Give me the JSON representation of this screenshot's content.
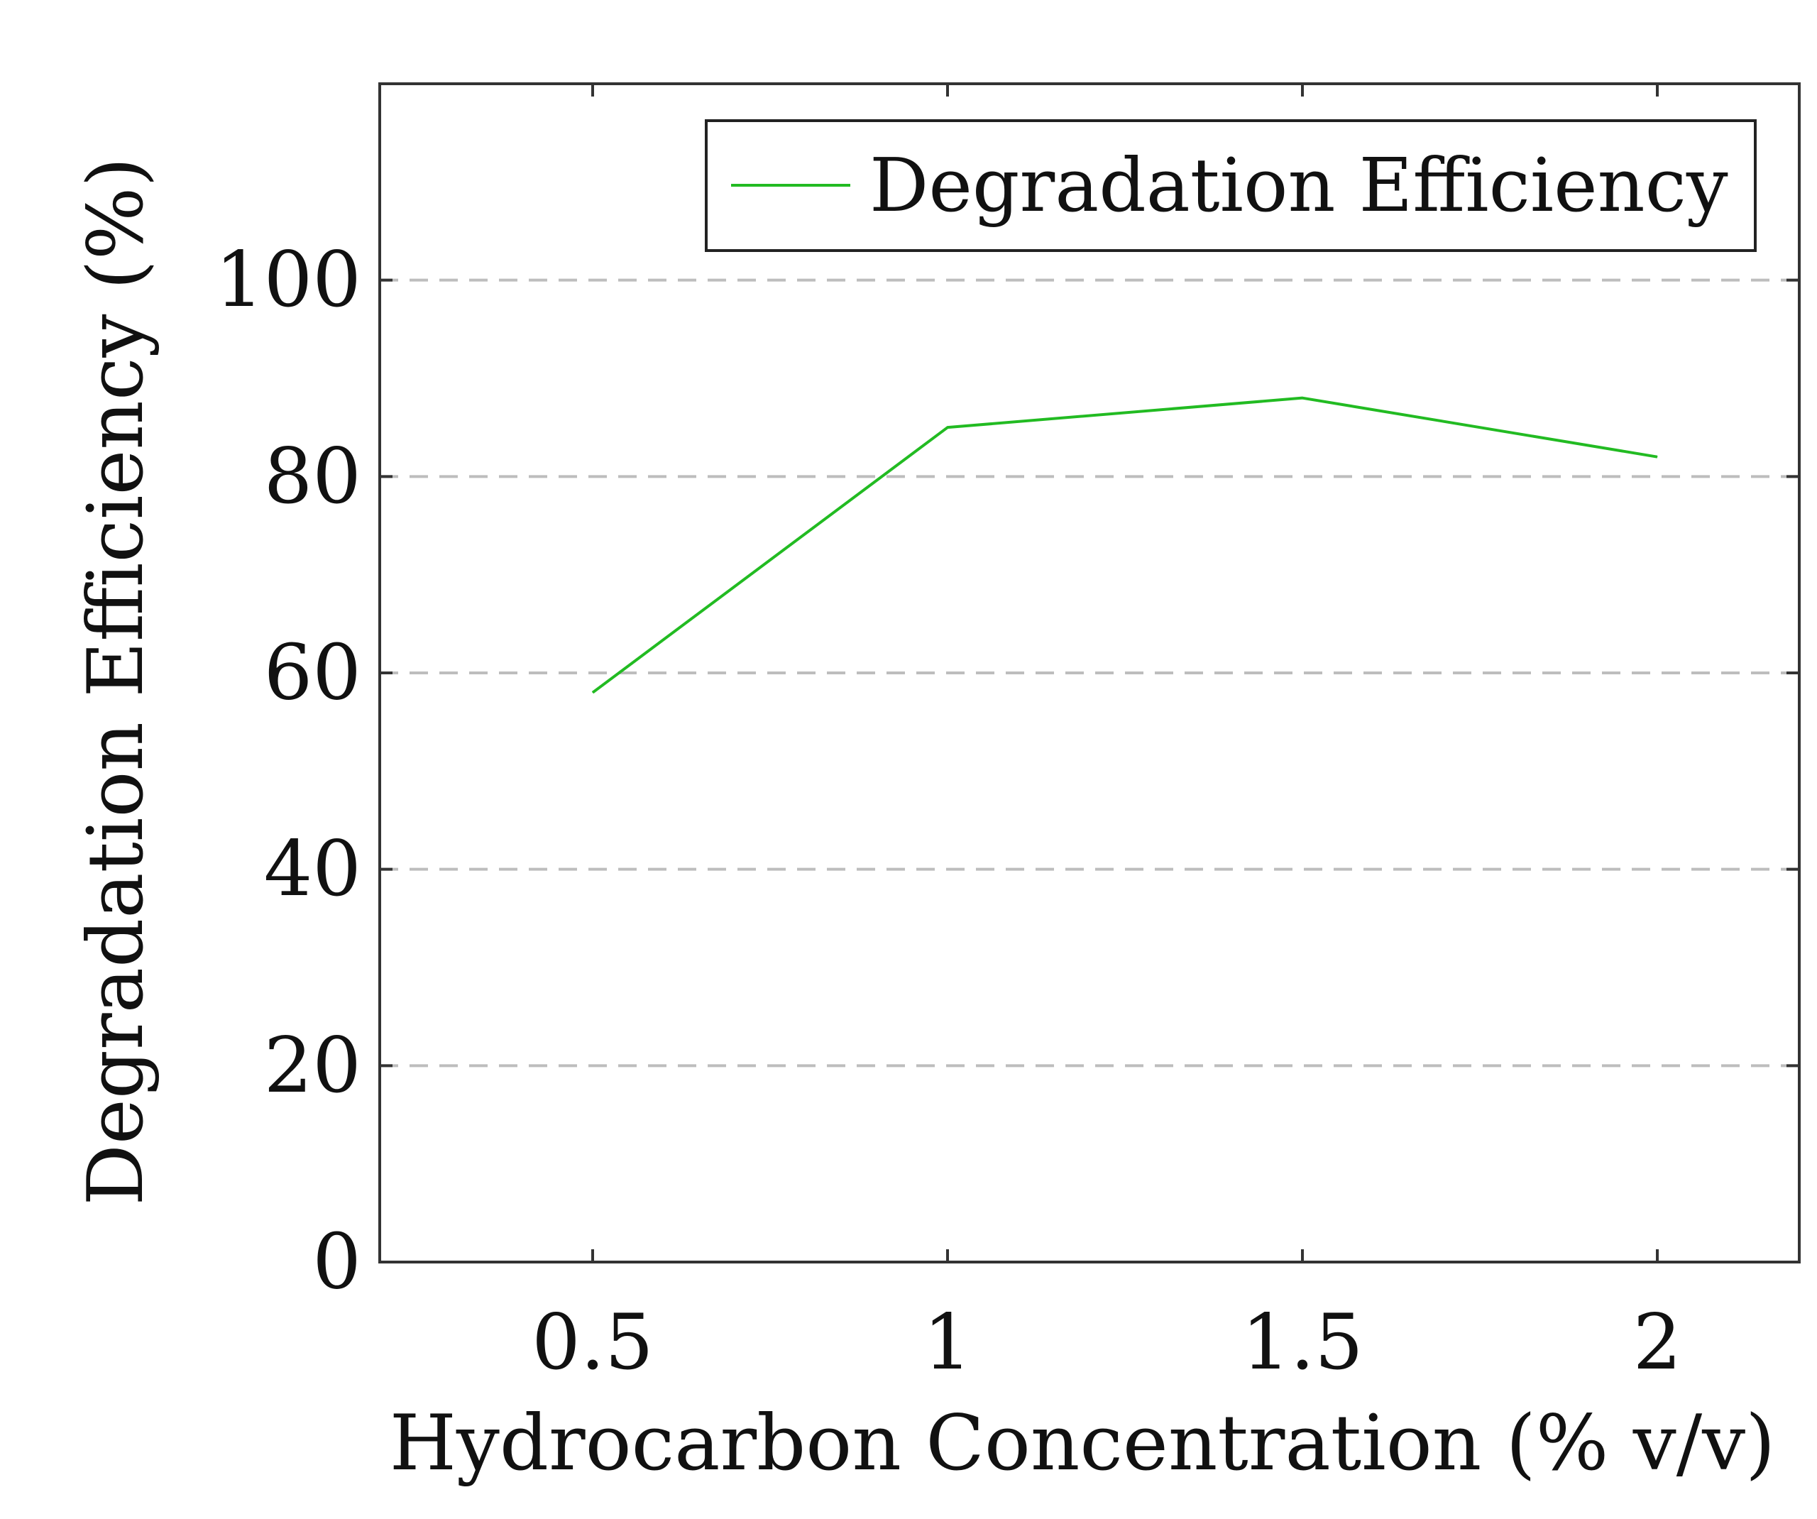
{
  "chart_data": {
    "type": "line",
    "title": "",
    "xlabel": "Hydrocarbon Concentration (% v/v)",
    "ylabel": "Degradation Efficiency (%)",
    "xlim": [
      0.2,
      2.2
    ],
    "ylim": [
      0,
      120
    ],
    "xticks": [
      0.5,
      1,
      1.5,
      2
    ],
    "xtick_labels": [
      "0.5",
      "1",
      "1.5",
      "2"
    ],
    "yticks": [
      0,
      20,
      40,
      60,
      80,
      100
    ],
    "ytick_labels": [
      "0",
      "20",
      "40",
      "60",
      "80",
      "100"
    ],
    "grid": "horizontal-dashed",
    "legend_position": "top-right",
    "series": [
      {
        "name": "Degradation Efficiency",
        "color": "#22bb22",
        "x": [
          0.5,
          1,
          1.5,
          2
        ],
        "y": [
          58,
          85,
          88,
          82
        ]
      }
    ]
  }
}
